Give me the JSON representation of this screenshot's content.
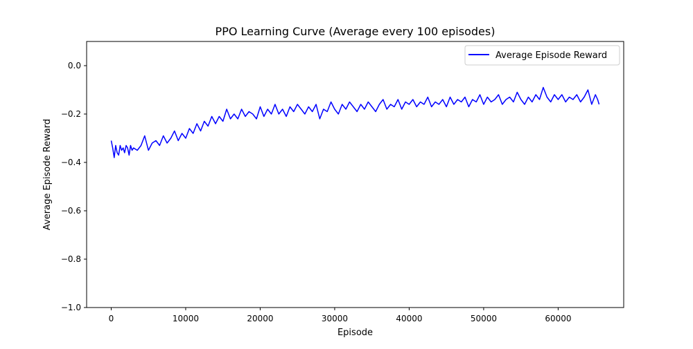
{
  "chart_data": {
    "type": "line",
    "title": "PPO Learning Curve (Average every 100 episodes)",
    "xlabel": "Episode",
    "ylabel": "Average Episode Reward",
    "xlim": [
      -3300,
      68800
    ],
    "ylim": [
      -1.0,
      0.1
    ],
    "xticks": [
      0,
      10000,
      20000,
      30000,
      40000,
      50000,
      60000
    ],
    "xtick_labels": [
      "0",
      "10000",
      "20000",
      "30000",
      "40000",
      "50000",
      "60000"
    ],
    "yticks": [
      0.0,
      -0.2,
      -0.4,
      -0.6,
      -0.8,
      -1.0
    ],
    "ytick_labels": [
      "0.0",
      "−0.2",
      "−0.4",
      "−0.6",
      "−0.8",
      "−1.0"
    ],
    "grid": false,
    "legend_position": "upper right",
    "series": [
      {
        "name": "Average Episode Reward",
        "color": "#0000ff",
        "x": [
          0,
          200,
          400,
          600,
          800,
          1000,
          1200,
          1400,
          1600,
          1800,
          2000,
          2200,
          2400,
          2600,
          2800,
          3000,
          3500,
          4000,
          4500,
          5000,
          5500,
          6000,
          6500,
          7000,
          7500,
          8000,
          8500,
          9000,
          9500,
          10000,
          10500,
          11000,
          11500,
          12000,
          12500,
          13000,
          13500,
          14000,
          14500,
          15000,
          15500,
          16000,
          16500,
          17000,
          17500,
          18000,
          18500,
          19000,
          19500,
          20000,
          20500,
          21000,
          21500,
          22000,
          22500,
          23000,
          23500,
          24000,
          24500,
          25000,
          25500,
          26000,
          26500,
          27000,
          27500,
          28000,
          28500,
          29000,
          29500,
          30000,
          30500,
          31000,
          31500,
          32000,
          32500,
          33000,
          33500,
          34000,
          34500,
          35000,
          35500,
          36000,
          36500,
          37000,
          37500,
          38000,
          38500,
          39000,
          39500,
          40000,
          40500,
          41000,
          41500,
          42000,
          42500,
          43000,
          43500,
          44000,
          44500,
          45000,
          45500,
          46000,
          46500,
          47000,
          47500,
          48000,
          48500,
          49000,
          49500,
          50000,
          50500,
          51000,
          51500,
          52000,
          52500,
          53000,
          53500,
          54000,
          54500,
          55000,
          55500,
          56000,
          56500,
          57000,
          57500,
          58000,
          58500,
          59000,
          59500,
          60000,
          60500,
          61000,
          61500,
          62000,
          62500,
          63000,
          63500,
          64000,
          64500,
          65000,
          65300,
          65500
        ],
        "y": [
          -0.31,
          -0.34,
          -0.38,
          -0.33,
          -0.36,
          -0.37,
          -0.33,
          -0.35,
          -0.34,
          -0.36,
          -0.33,
          -0.34,
          -0.37,
          -0.33,
          -0.35,
          -0.34,
          -0.35,
          -0.33,
          -0.29,
          -0.35,
          -0.32,
          -0.31,
          -0.33,
          -0.29,
          -0.32,
          -0.3,
          -0.27,
          -0.31,
          -0.28,
          -0.3,
          -0.26,
          -0.28,
          -0.24,
          -0.27,
          -0.23,
          -0.25,
          -0.21,
          -0.24,
          -0.21,
          -0.23,
          -0.18,
          -0.22,
          -0.2,
          -0.22,
          -0.18,
          -0.21,
          -0.19,
          -0.2,
          -0.22,
          -0.17,
          -0.21,
          -0.18,
          -0.2,
          -0.16,
          -0.2,
          -0.18,
          -0.21,
          -0.17,
          -0.19,
          -0.16,
          -0.18,
          -0.2,
          -0.17,
          -0.19,
          -0.16,
          -0.22,
          -0.18,
          -0.19,
          -0.15,
          -0.18,
          -0.2,
          -0.16,
          -0.18,
          -0.15,
          -0.17,
          -0.19,
          -0.16,
          -0.18,
          -0.15,
          -0.17,
          -0.19,
          -0.16,
          -0.14,
          -0.18,
          -0.16,
          -0.17,
          -0.14,
          -0.18,
          -0.15,
          -0.16,
          -0.14,
          -0.17,
          -0.15,
          -0.16,
          -0.13,
          -0.17,
          -0.15,
          -0.16,
          -0.14,
          -0.17,
          -0.13,
          -0.16,
          -0.14,
          -0.15,
          -0.13,
          -0.17,
          -0.14,
          -0.15,
          -0.12,
          -0.16,
          -0.13,
          -0.15,
          -0.14,
          -0.12,
          -0.16,
          -0.14,
          -0.13,
          -0.15,
          -0.11,
          -0.14,
          -0.16,
          -0.13,
          -0.15,
          -0.12,
          -0.14,
          -0.09,
          -0.13,
          -0.15,
          -0.12,
          -0.14,
          -0.12,
          -0.15,
          -0.13,
          -0.14,
          -0.12,
          -0.15,
          -0.13,
          -0.1,
          -0.16,
          -0.12,
          -0.14,
          -0.16
        ]
      }
    ]
  }
}
